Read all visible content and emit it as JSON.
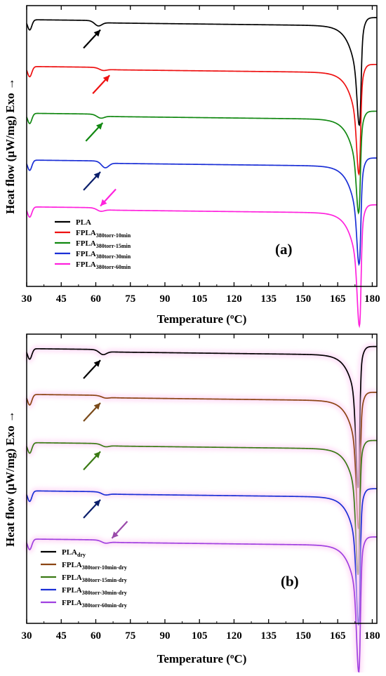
{
  "chart_data": [
    {
      "type": "line",
      "panel": "(a)",
      "xlabel": "Temperature (°C)",
      "ylabel": "Heat flow (μW/mg) Exo →",
      "xlim": [
        30,
        182
      ],
      "x_ticks": [
        30,
        45,
        60,
        75,
        90,
        105,
        120,
        135,
        150,
        165,
        180
      ],
      "y_ticks": false,
      "grid": false,
      "legend_position": "bottom-left",
      "series": [
        {
          "name": "PLA",
          "name_main": "PLA",
          "name_sub": "",
          "color": "#000000",
          "offset": 4.4,
          "tg": 61,
          "tg_depth": 0.09,
          "peak_x": 174.6,
          "peak_depth": 1.25,
          "arrow": {
            "x": 60,
            "color": "#000000",
            "dir": "up"
          }
        },
        {
          "name": "FPLA380torr-10min",
          "name_main": "FPLA",
          "name_sub": "380torr-10min",
          "color": "#ee1111",
          "offset": 3.4,
          "tg": 63,
          "tg_depth": 0.04,
          "peak_x": 174.4,
          "peak_depth": 1.35,
          "arrow": {
            "x": 64,
            "color": "#ee1111",
            "dir": "up"
          }
        },
        {
          "name": "FPLA380torr-15min",
          "name_main": "FPLA",
          "name_sub": "380torr-15min",
          "color": "#118811",
          "offset": 2.4,
          "tg": 62,
          "tg_depth": 0.06,
          "peak_x": 174.3,
          "peak_depth": 1.2,
          "arrow": {
            "x": 61,
            "color": "#118811",
            "dir": "up"
          }
        },
        {
          "name": "FPLA380torr-30min",
          "name_main": "FPLA",
          "name_sub": "380torr-30min",
          "color": "#1a2fd6",
          "offset": 1.4,
          "tg": 64,
          "tg_depth": 0.12,
          "peak_x": 174.5,
          "peak_depth": 1.25,
          "arrow": {
            "x": 60,
            "color": "#0b1f6b",
            "dir": "up"
          }
        },
        {
          "name": "FPLA380torr-60min",
          "name_main": "FPLA",
          "name_sub": "380torr-60min",
          "color": "#ff22dd",
          "offset": 0.4,
          "tg": 62,
          "tg_depth": 0.05,
          "peak_x": 174.6,
          "peak_depth": 1.55,
          "arrow": {
            "x": 62,
            "color": "#ff22dd",
            "dir": "down"
          }
        }
      ]
    },
    {
      "type": "line",
      "panel": "(b)",
      "xlabel": "Temperature (°C)",
      "ylabel": "Heat flow (μW/mg) Exo →",
      "xlim": [
        30,
        182
      ],
      "x_ticks": [
        30,
        45,
        60,
        75,
        90,
        105,
        120,
        135,
        150,
        165,
        180
      ],
      "y_ticks": false,
      "grid": false,
      "legend_position": "bottom-left",
      "series": [
        {
          "name": "PLAdry",
          "name_main": "PLA",
          "name_sub": "dry",
          "color": "#000000",
          "offset": 4.4,
          "tg": 63,
          "tg_depth": 0.08,
          "peak_x": 174.0,
          "peak_depth": 2.05,
          "arrow": {
            "x": 60,
            "color": "#000000",
            "dir": "up"
          }
        },
        {
          "name": "FPLA380torr-10min-dry",
          "name_main": "FPLA",
          "name_sub": "380torr-10min-dry",
          "color": "#8b4513",
          "offset": 3.45,
          "tg": 64,
          "tg_depth": 0.03,
          "peak_x": 174.2,
          "peak_depth": 1.9,
          "arrow": {
            "x": 60,
            "color": "#7a4a1a",
            "dir": "up"
          }
        },
        {
          "name": "FPLA380torr-15min-dry",
          "name_main": "FPLA",
          "name_sub": "380torr-15min-dry",
          "color": "#3a7a14",
          "offset": 2.45,
          "tg": 64,
          "tg_depth": 0.04,
          "peak_x": 174.0,
          "peak_depth": 1.9,
          "arrow": {
            "x": 60,
            "color": "#3a7a14",
            "dir": "up"
          }
        },
        {
          "name": "FPLA380torr-30min-dry",
          "name_main": "FPLA",
          "name_sub": "380torr-30min-dry",
          "color": "#1a2fd6",
          "offset": 1.45,
          "tg": 64,
          "tg_depth": 0.04,
          "peak_x": 174.2,
          "peak_depth": 1.9,
          "arrow": {
            "x": 60,
            "color": "#0b1f6b",
            "dir": "up"
          }
        },
        {
          "name": "FPLA380torr-60min-dry",
          "name_main": "FPLA",
          "name_sub": "380torr-60min-dry",
          "color": "#a040e0",
          "offset": 0.45,
          "tg": 64,
          "tg_depth": 0.04,
          "peak_x": 174.3,
          "peak_depth": 1.85,
          "arrow": {
            "x": 67,
            "color": "#9a4aaa",
            "dir": "down"
          }
        }
      ]
    }
  ]
}
